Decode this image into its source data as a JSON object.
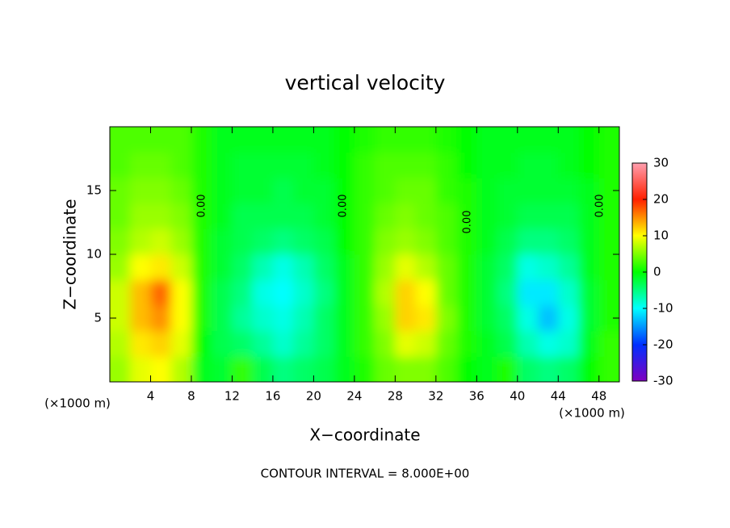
{
  "chart_data": {
    "type": "contour",
    "title": "vertical velocity",
    "xlabel": "X−coordinate",
    "ylabel": "Z−coordinate",
    "x_unit_label": "(×1000 m)",
    "x_unit_label_right": "(×1000 m)",
    "footnote": "CONTOUR INTERVAL = 8.000E+00",
    "contour_labels": [
      "0.00",
      "0.00",
      "0.00",
      "0.00"
    ],
    "x": [
      1,
      3,
      5,
      7,
      9,
      11,
      13,
      15,
      17,
      19,
      21,
      23,
      25,
      27,
      29,
      31,
      33,
      35,
      37,
      39,
      41,
      43,
      45,
      47,
      49
    ],
    "y": [
      1,
      3,
      5,
      7,
      9,
      11,
      13,
      15,
      17,
      19
    ],
    "z": [
      [
        6,
        9,
        10,
        7,
        -1,
        -2,
        2,
        -3,
        -5,
        -4,
        -3,
        -1,
        1,
        4,
        5,
        5,
        3,
        0,
        -1,
        1,
        -4,
        -5,
        -4,
        0,
        2
      ],
      [
        7,
        11,
        12,
        9,
        0,
        -3,
        -4,
        -6,
        -8,
        -6,
        -4,
        -1,
        2,
        5,
        9,
        8,
        4,
        1,
        -1,
        -3,
        -7,
        -9,
        -8,
        -1,
        2
      ],
      [
        8,
        13,
        15,
        10,
        1,
        -3,
        -6,
        -8,
        -9,
        -7,
        -4,
        -1,
        2,
        6,
        12,
        11,
        5,
        1,
        -2,
        -4,
        -9,
        -13,
        -9,
        -2,
        1
      ],
      [
        8,
        13,
        17,
        10,
        1,
        -3,
        -5,
        -9,
        -10,
        -8,
        -5,
        -1,
        2,
        7,
        12,
        10,
        4,
        1,
        -2,
        -5,
        -11,
        -11,
        -8,
        -2,
        1
      ],
      [
        6,
        10,
        11,
        8,
        1,
        -2,
        -4,
        -7,
        -9,
        -7,
        -4,
        -1,
        2,
        6,
        9,
        7,
        4,
        1,
        -2,
        -4,
        -9,
        -8,
        -6,
        -1,
        1
      ],
      [
        5,
        7,
        8,
        6,
        1,
        -2,
        -3,
        -4,
        -5,
        -4,
        -3,
        0,
        2,
        5,
        6,
        5,
        3,
        1,
        -1,
        -3,
        -5,
        -5,
        -4,
        -1,
        1
      ],
      [
        4,
        6,
        6,
        5,
        1,
        -1,
        -3,
        -3,
        -3,
        -3,
        -2,
        0,
        2,
        4,
        5,
        4,
        3,
        1,
        -1,
        -2,
        -3,
        -3,
        -3,
        -1,
        1
      ],
      [
        4,
        5,
        5,
        4,
        1,
        -1,
        -2,
        -2,
        -3,
        -2,
        -2,
        0,
        2,
        3,
        4,
        4,
        2,
        1,
        -1,
        -2,
        -2,
        -2,
        -2,
        -1,
        1
      ],
      [
        3,
        4,
        4,
        3,
        1,
        -1,
        -2,
        -2,
        -2,
        -2,
        -1,
        0,
        2,
        3,
        3,
        3,
        2,
        0,
        -1,
        -1,
        -2,
        -2,
        -1,
        0,
        1
      ],
      [
        3,
        3,
        3,
        3,
        1,
        -1,
        -1,
        -1,
        -1,
        -1,
        -1,
        0,
        1,
        2,
        2,
        2,
        1,
        0,
        -1,
        -1,
        -1,
        -1,
        -1,
        0,
        1
      ]
    ],
    "xlim": [
      0,
      50
    ],
    "ylim": [
      0,
      20
    ],
    "xticks": [
      4,
      8,
      12,
      16,
      20,
      24,
      28,
      32,
      36,
      40,
      44,
      48
    ],
    "yticks": [
      5,
      10,
      15
    ],
    "clim": [
      -30,
      30
    ],
    "cticks": [
      -30,
      -20,
      -10,
      0,
      10,
      20,
      30
    ],
    "colorscale": [
      [
        -30,
        "#8000c0"
      ],
      [
        -20,
        "#0030ff"
      ],
      [
        -10,
        "#00ffff"
      ],
      [
        0,
        "#00ff00"
      ],
      [
        10,
        "#ffff00"
      ],
      [
        20,
        "#ff2000"
      ],
      [
        30,
        "#ff9fb0"
      ]
    ]
  }
}
